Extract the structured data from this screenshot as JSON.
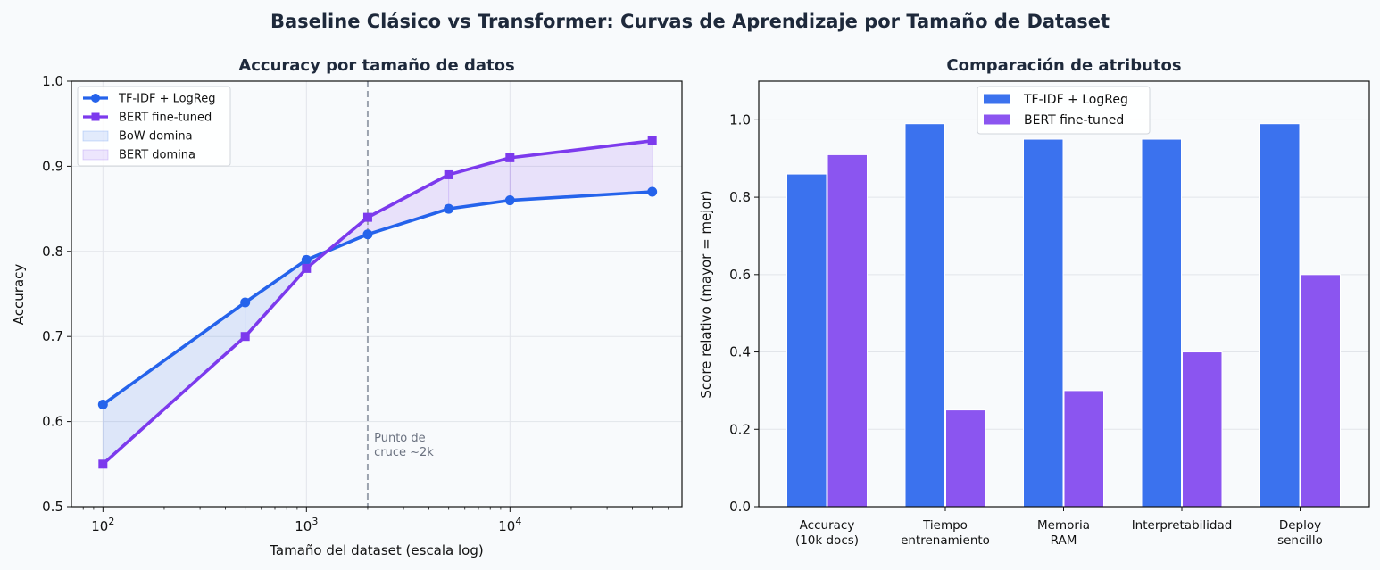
{
  "figure": {
    "title": "Baseline Clásico vs Transformer: Curvas de Aprendizaje por Tamaño de Dataset"
  },
  "chart_data": [
    {
      "type": "line",
      "title": "Accuracy por tamaño de datos",
      "xlabel": "Tamaño del dataset (escala log)",
      "ylabel": "Accuracy",
      "xscale": "log",
      "xlim": [
        70,
        70000
      ],
      "ylim": [
        0.5,
        1.0
      ],
      "x_ticks": [
        {
          "value": 100,
          "base": "10",
          "exp": "2"
        },
        {
          "value": 1000,
          "base": "10",
          "exp": "3"
        },
        {
          "value": 10000,
          "base": "10",
          "exp": "4"
        }
      ],
      "y_ticks": [
        "0.5",
        "0.6",
        "0.7",
        "0.8",
        "0.9",
        "1.0"
      ],
      "grid": true,
      "legend_position": "top-left",
      "x": [
        100,
        500,
        1000,
        2000,
        5000,
        10000,
        50000
      ],
      "series": [
        {
          "name": "TF-IDF + LogReg",
          "values": [
            0.62,
            0.74,
            0.79,
            0.82,
            0.85,
            0.86,
            0.87
          ],
          "color": "#2563eb",
          "marker": "circle"
        },
        {
          "name": "BERT fine-tuned",
          "values": [
            0.55,
            0.7,
            0.78,
            0.84,
            0.89,
            0.91,
            0.93
          ],
          "color": "#7c3aed",
          "marker": "square"
        }
      ],
      "fills": [
        {
          "name": "BoW domina",
          "color": "#2563eb"
        },
        {
          "name": "BERT domina",
          "color": "#7c3aed"
        }
      ],
      "vline": {
        "x": 2000,
        "color": "#9ca3af",
        "style": "dashed"
      },
      "annotations": [
        {
          "lines": [
            "Punto de",
            "cruce ~2k"
          ],
          "x": 2150,
          "y": 0.57
        }
      ]
    },
    {
      "type": "bar",
      "title": "Comparación de atributos",
      "xlabel": "",
      "ylabel": "Score relativo (mayor = mejor)",
      "ylim": [
        0,
        1.1
      ],
      "y_ticks": [
        "0.0",
        "0.2",
        "0.4",
        "0.6",
        "0.8",
        "1.0"
      ],
      "grid": true,
      "legend_position": "top-center",
      "categories": [
        [
          "Accuracy",
          "(10k docs)"
        ],
        [
          "Tiempo",
          "entrenamiento"
        ],
        [
          "Memoria",
          "RAM"
        ],
        [
          "Interpretabilidad"
        ],
        [
          "Deploy",
          "sencillo"
        ]
      ],
      "series": [
        {
          "name": "TF-IDF + LogReg",
          "values": [
            0.86,
            0.99,
            0.95,
            0.95,
            0.99
          ],
          "color": "#3b72ee"
        },
        {
          "name": "BERT fine-tuned",
          "values": [
            0.91,
            0.25,
            0.3,
            0.4,
            0.6
          ],
          "color": "#8b55f0"
        }
      ]
    }
  ]
}
